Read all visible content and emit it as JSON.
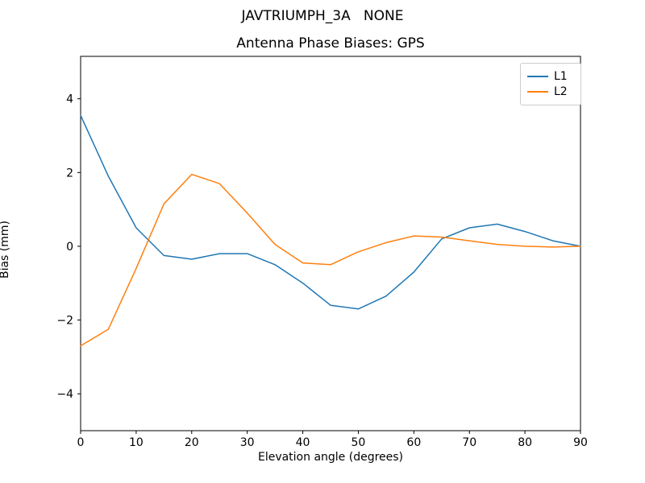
{
  "chart_data": {
    "type": "line",
    "suptitle": "JAVTRIUMPH_3A   NONE",
    "title": "Antenna Phase Biases: GPS",
    "xlabel": "Elevation angle (degrees)",
    "ylabel": "Bias (mm)",
    "xlim": [
      0,
      90
    ],
    "ylim": [
      -5.0,
      5.15
    ],
    "grid": false,
    "legend_position": "upper right",
    "x": [
      0,
      5,
      10,
      15,
      20,
      25,
      30,
      35,
      40,
      45,
      50,
      55,
      60,
      65,
      70,
      75,
      80,
      85,
      90
    ],
    "x_tick_values": [
      0,
      10,
      20,
      30,
      40,
      50,
      60,
      70,
      80,
      90
    ],
    "x_tick_labels": [
      "0",
      "10",
      "20",
      "30",
      "40",
      "50",
      "60",
      "70",
      "80",
      "90"
    ],
    "y_tick_values": [
      -4,
      -2,
      0,
      2,
      4
    ],
    "y_tick_labels": [
      "−4",
      "−2",
      "0",
      "2",
      "4"
    ],
    "series": [
      {
        "name": "L1",
        "color": "#1f77b4",
        "values": [
          3.55,
          1.9,
          0.5,
          -0.25,
          -0.35,
          -0.2,
          -0.2,
          -0.5,
          -1.0,
          -1.6,
          -1.7,
          -1.35,
          -0.7,
          0.2,
          0.5,
          0.6,
          0.4,
          0.15,
          0.0
        ]
      },
      {
        "name": "L2",
        "color": "#ff7f0e",
        "values": [
          -2.7,
          -2.25,
          -0.6,
          1.15,
          1.95,
          1.7,
          0.9,
          0.05,
          -0.45,
          -0.5,
          -0.15,
          0.1,
          0.28,
          0.25,
          0.15,
          0.05,
          0.0,
          -0.02,
          0.0
        ]
      }
    ]
  }
}
